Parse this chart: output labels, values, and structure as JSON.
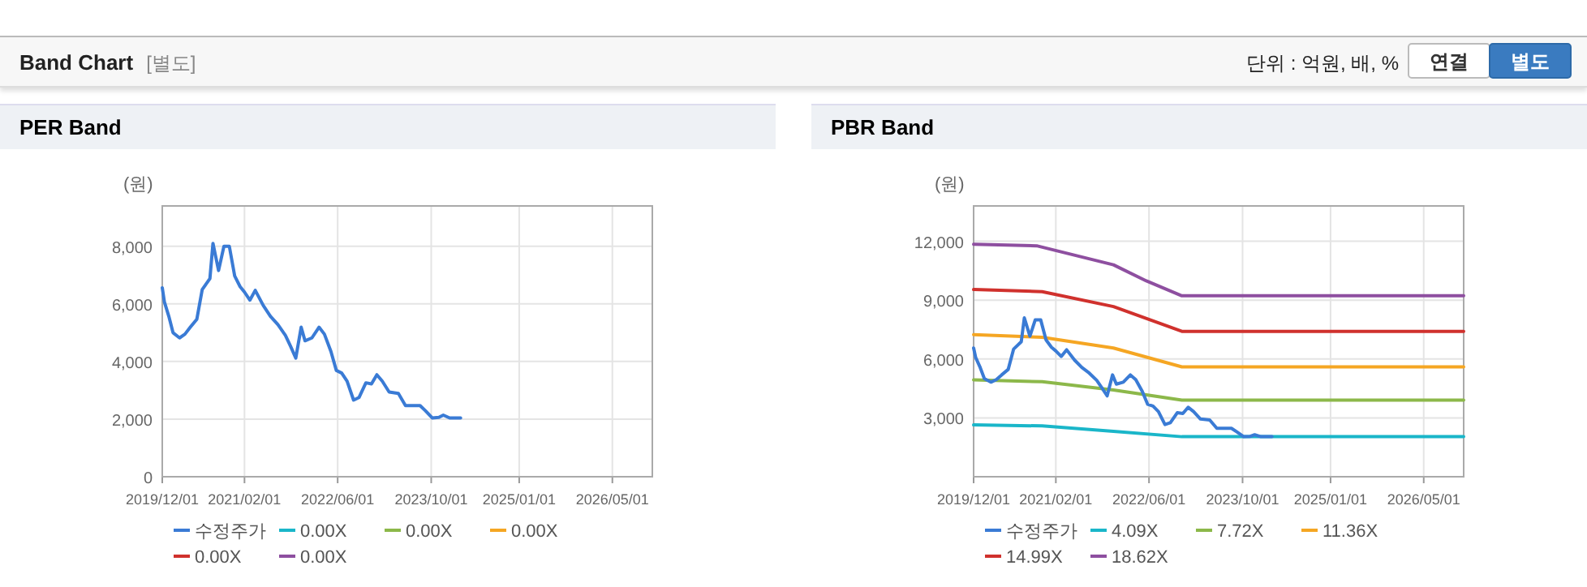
{
  "chart_data": [
    {
      "type": "line",
      "title": "PER Band",
      "ylabel": "(원)",
      "grid": true,
      "legend": "bottom",
      "annotations": [
        "Band Chart",
        "[별도]",
        "단위 : 억원, 배, %",
        "연결",
        "별도"
      ],
      "xlim": [
        "2019-12-01",
        "2026-11-25"
      ],
      "xticks": [
        {
          "value": "2019-12-01",
          "label": "2019/12/01"
        },
        {
          "value": "2021-02-01",
          "label": "2021/02/01"
        },
        {
          "value": "2022-06-01",
          "label": "2022/06/01"
        },
        {
          "value": "2023-10-01",
          "label": "2023/10/01"
        },
        {
          "value": "2025-01-01",
          "label": "2025/01/01"
        },
        {
          "value": "2026-05-01",
          "label": "2026/05/01"
        }
      ],
      "ylim": [
        0,
        9400
      ],
      "yticks": [
        0,
        {
          "value": 2000,
          "label": "2,000"
        },
        {
          "value": 4000,
          "label": "4,000"
        },
        {
          "value": 6000,
          "label": "6,000"
        },
        {
          "value": 8000,
          "label": "8,000"
        }
      ],
      "series": [
        {
          "name": "수정주가",
          "color": "#3a7bd5",
          "x": [
            "2019-12-01",
            "2019-12-12",
            "2020-01-04",
            "2020-01-26",
            "2020-02-29",
            "2020-03-28",
            "2020-04-25",
            "2020-05-29",
            "2020-06-26",
            "2020-08-05",
            "2020-08-21",
            "2020-09-19",
            "2020-10-17",
            "2020-11-14",
            "2020-12-12",
            "2021-01-09",
            "2021-02-01",
            "2021-03-01",
            "2021-03-29",
            "2021-05-10",
            "2021-06-16",
            "2021-07-25",
            "2021-09-02",
            "2021-09-28",
            "2021-10-26",
            "2021-11-23",
            "2021-12-13",
            "2022-01-18",
            "2022-02-24",
            "2022-03-24",
            "2022-04-27",
            "2022-05-25",
            "2022-06-22",
            "2022-07-20",
            "2022-08-23",
            "2022-09-20",
            "2022-10-26",
            "2022-11-24",
            "2022-12-22",
            "2023-01-19",
            "2023-02-24",
            "2023-04-13",
            "2023-05-20",
            "2023-06-28",
            "2023-08-04",
            "2023-09-01",
            "2023-10-07",
            "2023-11-10",
            "2023-12-03",
            "2024-01-05",
            "2024-03-02"
          ],
          "values": [
            6560,
            6070,
            5570,
            5000,
            4820,
            4950,
            5190,
            5470,
            6500,
            6880,
            8100,
            7160,
            8000,
            8000,
            6970,
            6600,
            6410,
            6130,
            6470,
            5940,
            5570,
            5280,
            4910,
            4540,
            4120,
            5190,
            4720,
            4820,
            5190,
            4950,
            4350,
            3690,
            3600,
            3320,
            2660,
            2750,
            3260,
            3220,
            3540,
            3320,
            2940,
            2890,
            2470,
            2470,
            2470,
            2290,
            2040,
            2060,
            2140,
            2040,
            2040
          ]
        },
        {
          "name": "0.00X",
          "color": "#1ab6c9"
        },
        {
          "name": "0.00X",
          "color": "#8cb84a"
        },
        {
          "name": "0.00X",
          "color": "#f5a623"
        },
        {
          "name": "0.00X",
          "color": "#d0312d"
        },
        {
          "name": "0.00X",
          "color": "#8e4fa0"
        }
      ]
    },
    {
      "type": "line",
      "title": "PBR Band",
      "ylabel": "(원)",
      "grid": true,
      "legend": "bottom",
      "xlim": [
        "2019-12-01",
        "2026-11-25"
      ],
      "xticks": [
        {
          "value": "2019-12-01",
          "label": "2019/12/01"
        },
        {
          "value": "2021-02-01",
          "label": "2021/02/01"
        },
        {
          "value": "2022-06-01",
          "label": "2022/06/01"
        },
        {
          "value": "2023-10-01",
          "label": "2023/10/01"
        },
        {
          "value": "2025-01-01",
          "label": "2025/01/01"
        },
        {
          "value": "2026-05-01",
          "label": "2026/05/01"
        }
      ],
      "ylim": [
        0,
        13800
      ],
      "yticks": [
        {
          "value": 3000,
          "label": "3,000"
        },
        {
          "value": 6000,
          "label": "6,000"
        },
        {
          "value": 9000,
          "label": "9,000"
        },
        {
          "value": 12000,
          "label": "12,000"
        }
      ],
      "series": [
        {
          "name": "수정주가",
          "color": "#3a7bd5",
          "x": [
            "2019-12-01",
            "2019-12-12",
            "2020-01-04",
            "2020-01-26",
            "2020-02-29",
            "2020-03-28",
            "2020-04-25",
            "2020-05-29",
            "2020-06-26",
            "2020-08-05",
            "2020-08-21",
            "2020-09-19",
            "2020-10-17",
            "2020-11-14",
            "2020-12-12",
            "2021-01-09",
            "2021-02-01",
            "2021-03-01",
            "2021-03-29",
            "2021-05-10",
            "2021-06-16",
            "2021-07-25",
            "2021-09-02",
            "2021-09-28",
            "2021-10-26",
            "2021-11-23",
            "2021-12-13",
            "2022-01-18",
            "2022-02-24",
            "2022-03-24",
            "2022-04-27",
            "2022-05-25",
            "2022-06-22",
            "2022-07-20",
            "2022-08-23",
            "2022-09-20",
            "2022-10-26",
            "2022-11-24",
            "2022-12-22",
            "2023-01-19",
            "2023-02-24",
            "2023-04-13",
            "2023-05-20",
            "2023-06-28",
            "2023-08-04",
            "2023-09-01",
            "2023-10-07",
            "2023-11-10",
            "2023-12-03",
            "2024-01-05",
            "2024-03-02"
          ],
          "values": [
            6560,
            6070,
            5570,
            5000,
            4820,
            4950,
            5190,
            5470,
            6500,
            6880,
            8100,
            7160,
            8000,
            8000,
            6970,
            6600,
            6410,
            6130,
            6470,
            5940,
            5570,
            5280,
            4910,
            4540,
            4120,
            5190,
            4720,
            4820,
            5190,
            4950,
            4350,
            3690,
            3600,
            3320,
            2660,
            2750,
            3260,
            3220,
            3540,
            3320,
            2940,
            2890,
            2470,
            2470,
            2470,
            2290,
            2040,
            2060,
            2140,
            2040,
            2040
          ]
        },
        {
          "name": "4.09X",
          "color": "#1ab6c9",
          "x": [
            "2019-12-01",
            "2020-11-22",
            "2021-11-28",
            "2022-11-19",
            "2026-11-25"
          ],
          "values": [
            2640,
            2590,
            2310,
            2040,
            2040
          ]
        },
        {
          "name": "7.72X",
          "color": "#8cb84a",
          "x": [
            "2019-12-01",
            "2020-11-22",
            "2021-11-28",
            "2022-11-19",
            "2026-11-25"
          ],
          "values": [
            4940,
            4840,
            4420,
            3900,
            3900
          ]
        },
        {
          "name": "11.36X",
          "color": "#f5a623",
          "x": [
            "2019-12-01",
            "2020-11-22",
            "2021-11-28",
            "2022-11-19",
            "2026-11-25"
          ],
          "values": [
            7240,
            7110,
            6560,
            5600,
            5600
          ]
        },
        {
          "name": "14.99X",
          "color": "#d0312d",
          "x": [
            "2019-12-01",
            "2020-11-22",
            "2021-11-28",
            "2022-11-19",
            "2026-11-25"
          ],
          "values": [
            9540,
            9430,
            8670,
            7410,
            7410
          ]
        },
        {
          "name": "18.62X",
          "color": "#8e4fa0",
          "x": [
            "2019-12-01",
            "2020-10-24",
            "2021-11-28",
            "2022-05-18",
            "2022-11-19",
            "2026-11-25"
          ],
          "values": [
            11850,
            11770,
            10800,
            9980,
            9220,
            9220
          ]
        }
      ]
    }
  ]
}
